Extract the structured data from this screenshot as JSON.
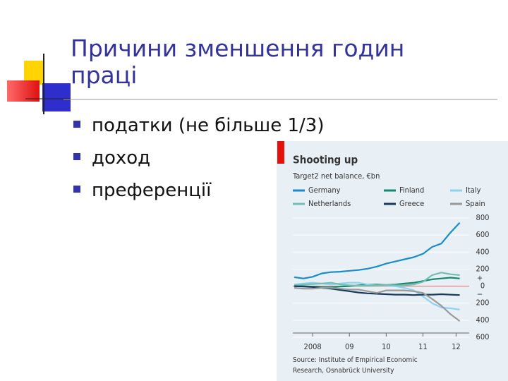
{
  "slide": {
    "title_lines": [
      "Причини зменшення годин",
      "праці"
    ],
    "bullets": [
      "податки (не більше 1/3)",
      "доход",
      "преференції"
    ]
  },
  "chart_data": {
    "type": "line",
    "title": "Shooting up",
    "subtitle": "Target2 net balance, €bn",
    "source": [
      "Source: Institute of Empirical Economic",
      "Research, Osnabrück University"
    ],
    "x": [
      2008,
      2008.25,
      2008.5,
      2008.75,
      2009,
      2009.25,
      2009.5,
      2009.75,
      2010,
      2010.25,
      2010.5,
      2010.75,
      2011,
      2011.25,
      2011.5,
      2011.75,
      2012,
      2012.25,
      2012.5
    ],
    "series": [
      {
        "name": "Germany",
        "color": "#1a8cc8",
        "values": [
          105,
          90,
          110,
          150,
          165,
          170,
          180,
          190,
          205,
          230,
          265,
          290,
          315,
          340,
          380,
          460,
          500,
          630,
          745
        ]
      },
      {
        "name": "Finland",
        "color": "#138a6c",
        "values": [
          0,
          0,
          -5,
          -10,
          -10,
          -5,
          0,
          10,
          20,
          20,
          15,
          20,
          30,
          40,
          60,
          80,
          90,
          100,
          90
        ]
      },
      {
        "name": "Italy",
        "color": "#8ed2ee",
        "values": [
          20,
          30,
          40,
          30,
          20,
          30,
          40,
          40,
          20,
          10,
          10,
          0,
          -20,
          -50,
          -120,
          -200,
          -250,
          -260,
          -275
        ]
      },
      {
        "name": "Netherlands",
        "color": "#74bdb3",
        "values": [
          10,
          20,
          25,
          30,
          40,
          20,
          10,
          5,
          5,
          10,
          15,
          10,
          10,
          20,
          50,
          130,
          160,
          140,
          130
        ]
      },
      {
        "name": "Greece",
        "color": "#17395a",
        "values": [
          0,
          -5,
          -10,
          -20,
          -30,
          -45,
          -60,
          -75,
          -85,
          -90,
          -95,
          -100,
          -100,
          -105,
          -100,
          -100,
          -95,
          -100,
          -105
        ]
      },
      {
        "name": "Spain",
        "color": "#9a9a9a",
        "values": [
          -20,
          -30,
          -30,
          -20,
          -20,
          -30,
          -40,
          -40,
          -60,
          -80,
          -50,
          -50,
          -50,
          -60,
          -80,
          -150,
          -230,
          -330,
          -410
        ]
      }
    ],
    "xlim": [
      2007.96,
      2012.7
    ],
    "xticks": [
      {
        "value": 2008.5,
        "label": "2008"
      },
      {
        "value": 2009.5,
        "label": "09"
      },
      {
        "value": 2010.5,
        "label": "10"
      },
      {
        "value": 2011.5,
        "label": "11"
      },
      {
        "value": 2012.4,
        "label": "12"
      }
    ],
    "ylim": [
      -600,
      800
    ],
    "yticks": [
      800,
      600,
      400,
      200,
      0,
      {
        "value": -200,
        "label": "200"
      },
      {
        "value": -400,
        "label": "400"
      },
      {
        "value": -600,
        "label": "600"
      }
    ],
    "sign_labels": [
      "+",
      "−"
    ],
    "grid": true,
    "zero_line_color": "#e49a9a",
    "accent_color": "#e3120b"
  }
}
